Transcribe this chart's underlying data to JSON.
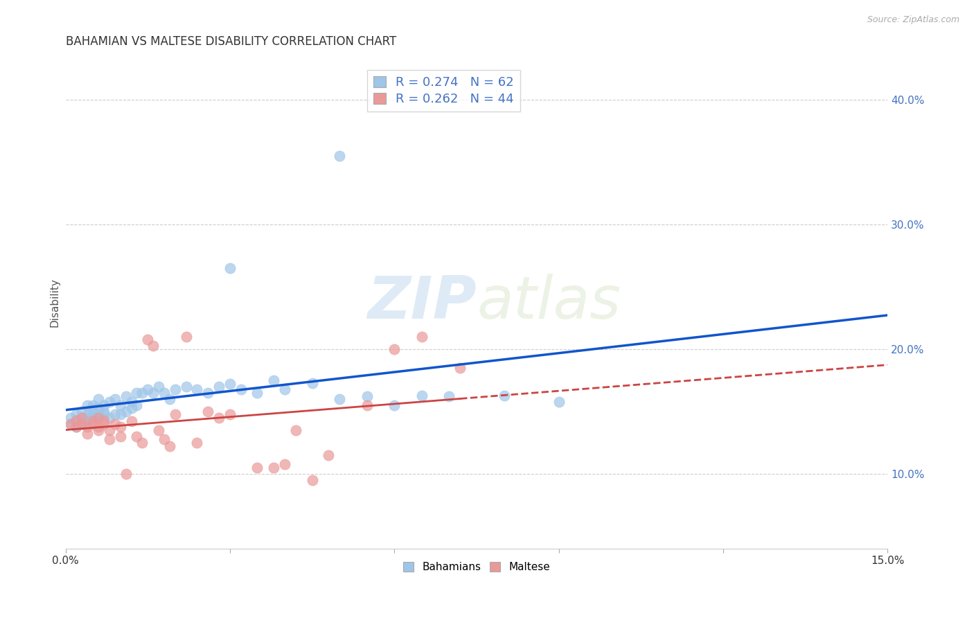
{
  "title": "BAHAMIAN VS MALTESE DISABILITY CORRELATION CHART",
  "source": "Source: ZipAtlas.com",
  "ylabel": "Disability",
  "xlim": [
    0.0,
    0.15
  ],
  "ylim": [
    0.04,
    0.435
  ],
  "yticks_right": [
    0.1,
    0.2,
    0.3,
    0.4
  ],
  "ytick_labels_right": [
    "10.0%",
    "20.0%",
    "30.0%",
    "40.0%"
  ],
  "bahamian_color": "#9fc5e8",
  "maltese_color": "#ea9999",
  "trend_bahamian_color": "#1155cc",
  "trend_maltese_color": "#cc4444",
  "R_bahamian": 0.274,
  "N_bahamian": 62,
  "R_maltese": 0.262,
  "N_maltese": 44,
  "bahamian_x": [
    0.001,
    0.001,
    0.002,
    0.002,
    0.002,
    0.003,
    0.003,
    0.003,
    0.003,
    0.004,
    0.004,
    0.004,
    0.004,
    0.005,
    0.005,
    0.005,
    0.005,
    0.006,
    0.006,
    0.006,
    0.006,
    0.007,
    0.007,
    0.007,
    0.008,
    0.008,
    0.009,
    0.009,
    0.01,
    0.01,
    0.011,
    0.011,
    0.012,
    0.012,
    0.013,
    0.013,
    0.014,
    0.015,
    0.016,
    0.017,
    0.018,
    0.019,
    0.02,
    0.022,
    0.024,
    0.026,
    0.028,
    0.03,
    0.032,
    0.035,
    0.038,
    0.04,
    0.045,
    0.05,
    0.055,
    0.06,
    0.065,
    0.07,
    0.08,
    0.09,
    0.03,
    0.05
  ],
  "bahamian_y": [
    0.145,
    0.14,
    0.148,
    0.138,
    0.143,
    0.145,
    0.15,
    0.14,
    0.143,
    0.148,
    0.145,
    0.155,
    0.142,
    0.155,
    0.148,
    0.152,
    0.145,
    0.16,
    0.148,
    0.153,
    0.145,
    0.155,
    0.15,
    0.148,
    0.158,
    0.145,
    0.16,
    0.148,
    0.155,
    0.148,
    0.162,
    0.15,
    0.158,
    0.153,
    0.165,
    0.155,
    0.165,
    0.168,
    0.165,
    0.17,
    0.165,
    0.16,
    0.168,
    0.17,
    0.168,
    0.165,
    0.17,
    0.172,
    0.168,
    0.165,
    0.175,
    0.168,
    0.173,
    0.16,
    0.162,
    0.155,
    0.163,
    0.162,
    0.163,
    0.158,
    0.265,
    0.355
  ],
  "maltese_x": [
    0.001,
    0.002,
    0.002,
    0.003,
    0.003,
    0.004,
    0.004,
    0.005,
    0.005,
    0.006,
    0.006,
    0.006,
    0.007,
    0.007,
    0.008,
    0.008,
    0.009,
    0.01,
    0.01,
    0.011,
    0.012,
    0.013,
    0.014,
    0.015,
    0.016,
    0.017,
    0.018,
    0.019,
    0.02,
    0.022,
    0.024,
    0.026,
    0.028,
    0.03,
    0.035,
    0.038,
    0.04,
    0.042,
    0.045,
    0.048,
    0.055,
    0.06,
    0.065,
    0.072
  ],
  "maltese_y": [
    0.14,
    0.138,
    0.143,
    0.14,
    0.145,
    0.138,
    0.132,
    0.14,
    0.143,
    0.135,
    0.138,
    0.145,
    0.14,
    0.143,
    0.135,
    0.128,
    0.14,
    0.13,
    0.138,
    0.1,
    0.142,
    0.13,
    0.125,
    0.208,
    0.203,
    0.135,
    0.128,
    0.122,
    0.148,
    0.21,
    0.125,
    0.15,
    0.145,
    0.148,
    0.105,
    0.105,
    0.108,
    0.135,
    0.095,
    0.115,
    0.155,
    0.2,
    0.21,
    0.185
  ],
  "watermark_zip": "ZIP",
  "watermark_atlas": "atlas",
  "background_color": "#ffffff",
  "grid_color": "#cccccc"
}
